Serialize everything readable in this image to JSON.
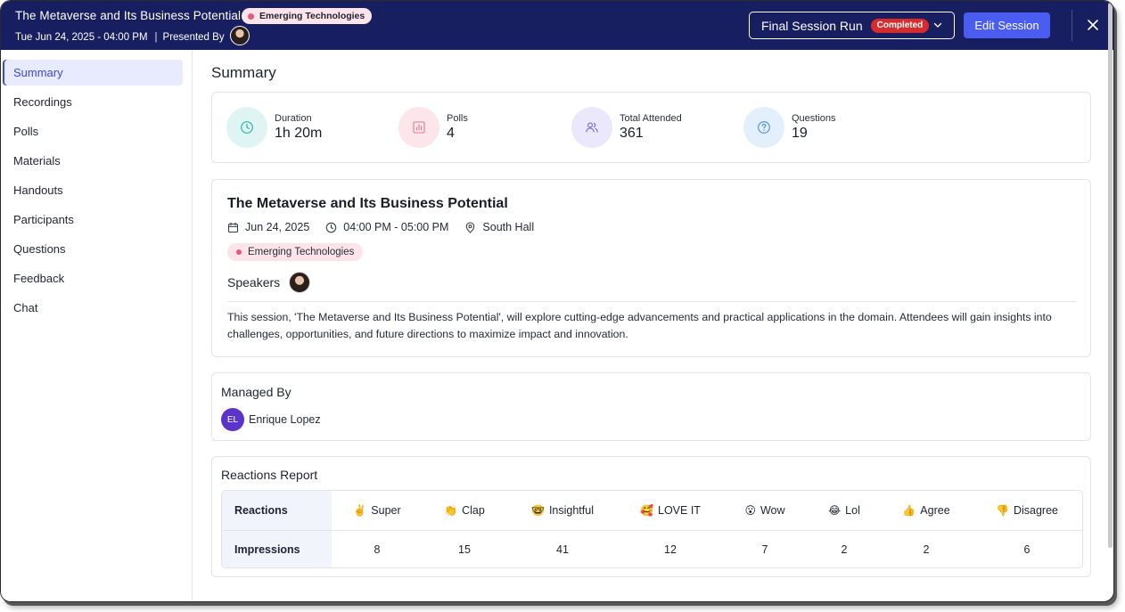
{
  "header": {
    "title": "The Metaverse and Its Business Potential",
    "tag": "Emerging Technologies",
    "datetime": "Tue Jun 24, 2025 - 04:00 PM",
    "separator": "|",
    "presented_by": "Presented By",
    "run_select": {
      "label": "Final Session Run",
      "status": "Completed"
    },
    "edit_button": "Edit Session"
  },
  "sidebar": {
    "items": [
      {
        "label": "Summary",
        "active": true
      },
      {
        "label": "Recordings"
      },
      {
        "label": "Polls"
      },
      {
        "label": "Materials"
      },
      {
        "label": "Handouts"
      },
      {
        "label": "Participants"
      },
      {
        "label": "Questions"
      },
      {
        "label": "Feedback"
      },
      {
        "label": "Chat"
      }
    ]
  },
  "main": {
    "title": "Summary",
    "stats": [
      {
        "label": "Duration",
        "value": "1h 20m",
        "icon": "clock-icon",
        "bg": "#dff5f4",
        "color": "#2fb5ae"
      },
      {
        "label": "Polls",
        "value": "4",
        "icon": "poll-chart-icon",
        "bg": "#fde6ea",
        "color": "#e07a93"
      },
      {
        "label": "Total Attended",
        "value": "361",
        "icon": "users-icon",
        "bg": "#ebe8fb",
        "color": "#7565d8"
      },
      {
        "label": "Questions",
        "value": "19",
        "icon": "question-icon",
        "bg": "#e3f0fb",
        "color": "#4b8fd6"
      }
    ],
    "session": {
      "title": "The Metaverse and Its Business Potential",
      "date": "Jun 24, 2025",
      "time": "04:00 PM - 05:00 PM",
      "location": "South Hall",
      "tag": "Emerging Technologies",
      "speakers_label": "Speakers",
      "description": "This session, 'The Metaverse and Its Business Potential', will explore cutting-edge advancements and practical applications in the domain. Attendees will gain insights into challenges, opportunities, and future directions to maximize impact and innovation."
    },
    "managed_by": {
      "title": "Managed By",
      "initials": "EL",
      "name": "Enrique Lopez"
    },
    "reactions_report": {
      "title": "Reactions Report",
      "row_labels": [
        "Reactions",
        "Impressions"
      ],
      "columns": [
        {
          "emoji": "✌️",
          "label": "Super",
          "count": "8"
        },
        {
          "emoji": "👏",
          "label": "Clap",
          "count": "15"
        },
        {
          "emoji": "🤓",
          "label": "Insightful",
          "count": "41"
        },
        {
          "emoji": "🥰",
          "label": "LOVE IT",
          "count": "12"
        },
        {
          "emoji": "😮",
          "label": "Wow",
          "count": "7"
        },
        {
          "emoji": "😂",
          "label": "Lol",
          "count": "2"
        },
        {
          "emoji": "👍",
          "label": "Agree",
          "count": "2"
        },
        {
          "emoji": "👎",
          "label": "Disagree",
          "count": "6"
        }
      ]
    }
  }
}
